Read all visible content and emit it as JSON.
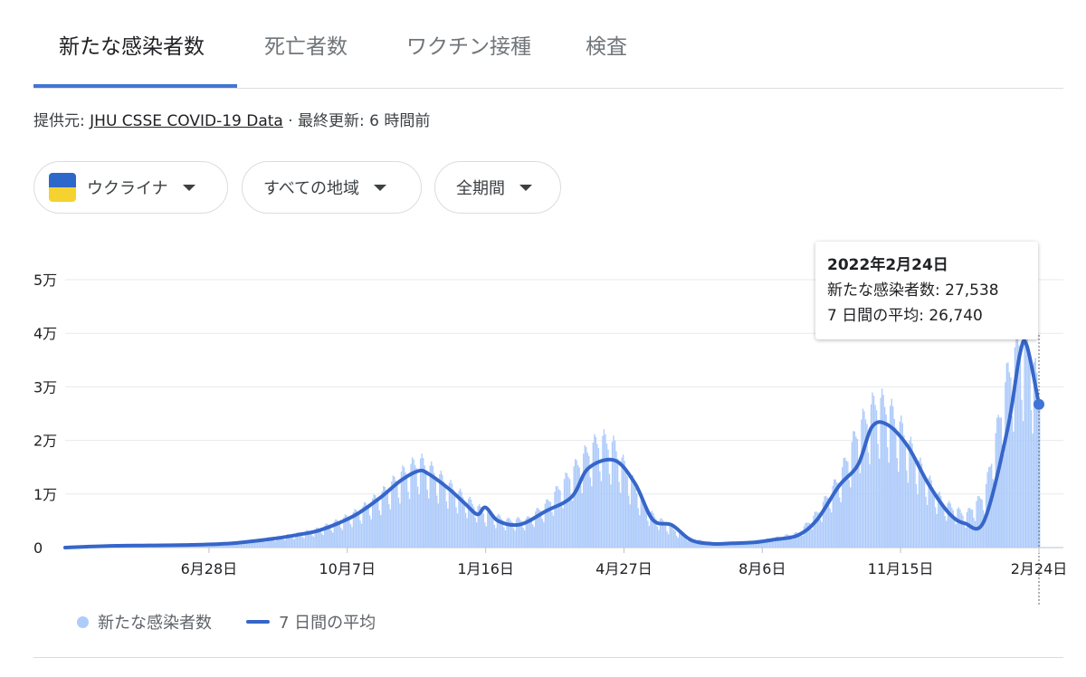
{
  "tabs": [
    {
      "label": "新たな感染者数",
      "active": true
    },
    {
      "label": "死亡者数",
      "active": false
    },
    {
      "label": "ワクチン接種",
      "active": false
    },
    {
      "label": "検査",
      "active": false
    }
  ],
  "source": {
    "prefix": "提供元:",
    "link_text": "JHU CSSE COVID-19 Data",
    "separator": "·",
    "updated": "最終更新: 6 時間前"
  },
  "filters": {
    "country": "ウクライナ",
    "region": "すべての地域",
    "period": "全期間"
  },
  "tooltip": {
    "date": "2022年2月24日",
    "cases_line": "新たな感染者数: 27,538",
    "avg_line": "7 日間の平均: 26,740"
  },
  "legend": {
    "bars": "新たな感染者数",
    "line": "7 日間の平均"
  },
  "colors": {
    "bar": "#aecbfa",
    "line": "#3666c9",
    "accent": "#4275d3",
    "grid": "#e8eaed"
  },
  "icons": {
    "flag": "ukraine-flag-icon",
    "dropdown": "caret-down-icon"
  },
  "chart_data": {
    "type": "bar",
    "ylim": [
      0,
      50000
    ],
    "y_ticks": [
      {
        "value": 0,
        "label": "0"
      },
      {
        "value": 10000,
        "label": "1万"
      },
      {
        "value": 20000,
        "label": "2万"
      },
      {
        "value": 30000,
        "label": "3万"
      },
      {
        "value": 40000,
        "label": "4万"
      },
      {
        "value": 50000,
        "label": "5万"
      }
    ],
    "x_ticks": [
      {
        "date": "2020-06-28",
        "label": "6月28日"
      },
      {
        "date": "2020-10-07",
        "label": "10月7日"
      },
      {
        "date": "2021-01-16",
        "label": "1月16日"
      },
      {
        "date": "2021-04-27",
        "label": "4月27日"
      },
      {
        "date": "2021-08-06",
        "label": "8月6日"
      },
      {
        "date": "2021-11-15",
        "label": "11月15日"
      },
      {
        "date": "2022-02-24",
        "label": "2月24日"
      }
    ],
    "grid": true,
    "series": [
      {
        "name": "新たな感染者数",
        "kind": "bars",
        "points": [
          [
            "2020-03-15",
            50
          ],
          [
            "2020-04-15",
            400
          ],
          [
            "2020-05-15",
            450
          ],
          [
            "2020-06-15",
            550
          ],
          [
            "2020-07-15",
            900
          ],
          [
            "2020-08-15",
            1900
          ],
          [
            "2020-09-01",
            2600
          ],
          [
            "2020-09-15",
            3400
          ],
          [
            "2020-10-01",
            5000
          ],
          [
            "2020-10-15",
            6800
          ],
          [
            "2020-11-01",
            10000
          ],
          [
            "2020-11-15",
            13500
          ],
          [
            "2020-11-28",
            16000
          ],
          [
            "2020-12-05",
            14800
          ],
          [
            "2020-12-20",
            11500
          ],
          [
            "2021-01-01",
            9000
          ],
          [
            "2021-01-15",
            6500
          ],
          [
            "2021-02-01",
            5000
          ],
          [
            "2021-02-15",
            5200
          ],
          [
            "2021-03-01",
            8000
          ],
          [
            "2021-03-15",
            12500
          ],
          [
            "2021-04-01",
            18000
          ],
          [
            "2021-04-10",
            20000
          ],
          [
            "2021-04-20",
            18500
          ],
          [
            "2021-05-01",
            13000
          ],
          [
            "2021-05-15",
            6500
          ],
          [
            "2021-06-01",
            3500
          ],
          [
            "2021-06-15",
            1600
          ],
          [
            "2021-07-01",
            900
          ],
          [
            "2021-07-15",
            900
          ],
          [
            "2021-08-01",
            1200
          ],
          [
            "2021-08-15",
            1800
          ],
          [
            "2021-09-01",
            2700
          ],
          [
            "2021-09-15",
            6500
          ],
          [
            "2021-10-01",
            13000
          ],
          [
            "2021-10-15",
            22000
          ],
          [
            "2021-10-28",
            27000
          ],
          [
            "2021-11-05",
            26000
          ],
          [
            "2021-11-15",
            22000
          ],
          [
            "2021-12-01",
            14000
          ],
          [
            "2021-12-15",
            8500
          ],
          [
            "2022-01-01",
            6000
          ],
          [
            "2022-01-15",
            10000
          ],
          [
            "2022-02-01",
            32000
          ],
          [
            "2022-02-10",
            38500
          ],
          [
            "2022-02-17",
            37000
          ],
          [
            "2022-02-24",
            27538
          ]
        ]
      },
      {
        "name": "7 日間の平均",
        "kind": "line",
        "points": [
          [
            "2020-03-15",
            0
          ],
          [
            "2020-04-15",
            300
          ],
          [
            "2020-05-15",
            400
          ],
          [
            "2020-06-15",
            500
          ],
          [
            "2020-07-15",
            800
          ],
          [
            "2020-08-15",
            1700
          ],
          [
            "2020-09-01",
            2400
          ],
          [
            "2020-09-15",
            3100
          ],
          [
            "2020-10-01",
            4600
          ],
          [
            "2020-10-15",
            6400
          ],
          [
            "2020-11-01",
            9500
          ],
          [
            "2020-11-15",
            12500
          ],
          [
            "2020-11-28",
            14300
          ],
          [
            "2020-12-05",
            13800
          ],
          [
            "2020-12-20",
            11000
          ],
          [
            "2021-01-01",
            8200
          ],
          [
            "2021-01-10",
            6200
          ],
          [
            "2021-01-16",
            7500
          ],
          [
            "2021-01-25",
            5000
          ],
          [
            "2021-02-10",
            4300
          ],
          [
            "2021-03-01",
            6800
          ],
          [
            "2021-03-20",
            9500
          ],
          [
            "2021-04-01",
            14800
          ],
          [
            "2021-04-20",
            16300
          ],
          [
            "2021-05-05",
            12000
          ],
          [
            "2021-05-18",
            5200
          ],
          [
            "2021-06-01",
            4200
          ],
          [
            "2021-06-15",
            1400
          ],
          [
            "2021-07-01",
            700
          ],
          [
            "2021-07-15",
            800
          ],
          [
            "2021-08-01",
            1000
          ],
          [
            "2021-08-15",
            1500
          ],
          [
            "2021-09-01",
            2300
          ],
          [
            "2021-09-15",
            5200
          ],
          [
            "2021-10-01",
            11500
          ],
          [
            "2021-10-15",
            15500
          ],
          [
            "2021-10-25",
            22500
          ],
          [
            "2021-11-05",
            23000
          ],
          [
            "2021-11-20",
            19000
          ],
          [
            "2021-12-05",
            12000
          ],
          [
            "2021-12-20",
            6500
          ],
          [
            "2022-01-01",
            4500
          ],
          [
            "2022-01-15",
            5000
          ],
          [
            "2022-02-01",
            22000
          ],
          [
            "2022-02-10",
            36000
          ],
          [
            "2022-02-15",
            37800
          ],
          [
            "2022-02-24",
            26740
          ]
        ]
      }
    ]
  }
}
